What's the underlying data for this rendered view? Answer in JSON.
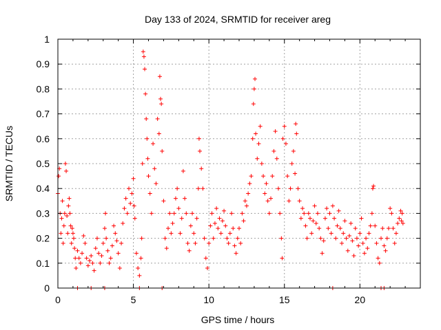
{
  "chart_data": {
    "type": "scatter",
    "title": "Day 133 of 2024, SRMTID for receiver areg",
    "xlabel": "GPS time / hours",
    "ylabel": "SRMTID / TECUs",
    "xlim": [
      0,
      24
    ],
    "ylim": [
      0,
      1
    ],
    "xticks": [
      0,
      5,
      10,
      15,
      20
    ],
    "xtick_labels": [
      "0",
      "5",
      "10",
      "15",
      "20"
    ],
    "yticks": [
      0,
      0.1,
      0.2,
      0.3,
      0.4,
      0.5,
      0.6,
      0.7,
      0.8,
      0.9,
      1
    ],
    "ytick_labels": [
      "0",
      "0.1",
      "0.2",
      "0.3",
      "0.4",
      "0.5",
      "0.6",
      "0.7",
      "0.8",
      "0.9",
      "1"
    ],
    "grid": true,
    "marker": "+",
    "series": [
      {
        "name": "SRMTID",
        "color": "#ff0000",
        "points": [
          [
            0.0,
            0.38
          ],
          [
            0.05,
            0.45
          ],
          [
            0.1,
            0.48
          ],
          [
            0.15,
            0.3
          ],
          [
            0.2,
            0.22
          ],
          [
            0.25,
            0.28
          ],
          [
            0.3,
            0.35
          ],
          [
            0.35,
            0.18
          ],
          [
            0.4,
            0.25
          ],
          [
            0.45,
            0.3
          ],
          [
            0.5,
            0.5
          ],
          [
            0.55,
            0.47
          ],
          [
            0.6,
            0.29
          ],
          [
            0.65,
            0.22
          ],
          [
            0.7,
            0.33
          ],
          [
            0.75,
            0.36
          ],
          [
            0.8,
            0.3
          ],
          [
            0.85,
            0.25
          ],
          [
            0.9,
            0.18
          ],
          [
            0.95,
            0.24
          ],
          [
            1.0,
            0.22
          ],
          [
            1.05,
            0.2
          ],
          [
            1.1,
            0.16
          ],
          [
            1.15,
            0.12
          ],
          [
            1.2,
            0.08
          ],
          [
            1.3,
            0.15
          ],
          [
            1.4,
            0.12
          ],
          [
            1.5,
            0.1
          ],
          [
            1.6,
            0.14
          ],
          [
            1.7,
            0.21
          ],
          [
            1.8,
            0.18
          ],
          [
            1.9,
            0.12
          ],
          [
            2.0,
            0.09
          ],
          [
            2.1,
            0.11
          ],
          [
            2.2,
            0.13
          ],
          [
            2.3,
            0.1
          ],
          [
            2.4,
            0.07
          ],
          [
            2.5,
            0.16
          ],
          [
            2.6,
            0.2
          ],
          [
            2.7,
            0.14
          ],
          [
            2.8,
            0.1
          ],
          [
            2.9,
            0.13
          ],
          [
            3.0,
            0.18
          ],
          [
            3.1,
            0.24
          ],
          [
            3.15,
            0.3
          ],
          [
            3.2,
            0.2
          ],
          [
            3.3,
            0.15
          ],
          [
            3.4,
            0.1
          ],
          [
            3.5,
            0.12
          ],
          [
            3.6,
            0.17
          ],
          [
            3.7,
            0.25
          ],
          [
            3.8,
            0.22
          ],
          [
            3.9,
            0.19
          ],
          [
            4.0,
            0.14
          ],
          [
            4.1,
            0.08
          ],
          [
            4.2,
            0.18
          ],
          [
            4.3,
            0.26
          ],
          [
            4.4,
            0.32
          ],
          [
            4.5,
            0.36
          ],
          [
            4.6,
            0.3
          ],
          [
            4.7,
            0.4
          ],
          [
            4.8,
            0.34
          ],
          [
            4.9,
            0.38
          ],
          [
            5.0,
            0.44
          ],
          [
            5.05,
            0.33
          ],
          [
            5.1,
            0.28
          ],
          [
            5.2,
            0.14
          ],
          [
            5.3,
            0.08
          ],
          [
            5.4,
            0.05
          ],
          [
            5.5,
            0.12
          ],
          [
            5.55,
            0.2
          ],
          [
            5.6,
            0.5
          ],
          [
            5.65,
            0.95
          ],
          [
            5.7,
            0.93
          ],
          [
            5.75,
            0.88
          ],
          [
            5.8,
            0.78
          ],
          [
            5.85,
            0.68
          ],
          [
            5.9,
            0.6
          ],
          [
            5.95,
            0.52
          ],
          [
            6.0,
            0.45
          ],
          [
            6.1,
            0.38
          ],
          [
            6.2,
            0.3
          ],
          [
            6.3,
            0.58
          ],
          [
            6.4,
            0.48
          ],
          [
            6.5,
            0.42
          ],
          [
            6.6,
            0.68
          ],
          [
            6.7,
            0.62
          ],
          [
            6.75,
            0.85
          ],
          [
            6.8,
            0.76
          ],
          [
            6.85,
            0.74
          ],
          [
            6.9,
            0.55
          ],
          [
            7.0,
            0.35
          ],
          [
            7.1,
            0.2
          ],
          [
            7.2,
            0.16
          ],
          [
            7.3,
            0.24
          ],
          [
            7.4,
            0.3
          ],
          [
            7.5,
            0.22
          ],
          [
            7.6,
            0.26
          ],
          [
            7.7,
            0.3
          ],
          [
            7.8,
            0.36
          ],
          [
            7.9,
            0.4
          ],
          [
            8.0,
            0.32
          ],
          [
            8.1,
            0.22
          ],
          [
            8.2,
            0.28
          ],
          [
            8.3,
            0.47
          ],
          [
            8.4,
            0.36
          ],
          [
            8.5,
            0.3
          ],
          [
            8.6,
            0.18
          ],
          [
            8.7,
            0.15
          ],
          [
            8.8,
            0.25
          ],
          [
            8.9,
            0.3
          ],
          [
            9.0,
            0.22
          ],
          [
            9.1,
            0.18
          ],
          [
            9.2,
            0.28
          ],
          [
            9.3,
            0.4
          ],
          [
            9.35,
            0.6
          ],
          [
            9.4,
            0.55
          ],
          [
            9.5,
            0.48
          ],
          [
            9.6,
            0.4
          ],
          [
            9.7,
            0.2
          ],
          [
            9.8,
            0.12
          ],
          [
            9.9,
            0.08
          ],
          [
            10.0,
            0.18
          ],
          [
            10.1,
            0.25
          ],
          [
            10.2,
            0.3
          ],
          [
            10.3,
            0.2
          ],
          [
            10.4,
            0.26
          ],
          [
            10.5,
            0.32
          ],
          [
            10.6,
            0.24
          ],
          [
            10.7,
            0.28
          ],
          [
            10.8,
            0.22
          ],
          [
            10.9,
            0.27
          ],
          [
            11.0,
            0.31
          ],
          [
            11.1,
            0.25
          ],
          [
            11.2,
            0.2
          ],
          [
            11.3,
            0.18
          ],
          [
            11.4,
            0.22
          ],
          [
            11.5,
            0.3
          ],
          [
            11.6,
            0.24
          ],
          [
            11.7,
            0.17
          ],
          [
            11.8,
            0.14
          ],
          [
            11.9,
            0.2
          ],
          [
            12.0,
            0.24
          ],
          [
            12.1,
            0.18
          ],
          [
            12.2,
            0.3
          ],
          [
            12.3,
            0.27
          ],
          [
            12.4,
            0.35
          ],
          [
            12.5,
            0.33
          ],
          [
            12.6,
            0.38
          ],
          [
            12.7,
            0.42
          ],
          [
            12.8,
            0.45
          ],
          [
            12.9,
            0.6
          ],
          [
            12.95,
            0.74
          ],
          [
            13.0,
            0.8
          ],
          [
            13.05,
            0.84
          ],
          [
            13.1,
            0.62
          ],
          [
            13.2,
            0.52
          ],
          [
            13.3,
            0.58
          ],
          [
            13.4,
            0.65
          ],
          [
            13.5,
            0.5
          ],
          [
            13.6,
            0.45
          ],
          [
            13.7,
            0.38
          ],
          [
            13.8,
            0.42
          ],
          [
            13.9,
            0.35
          ],
          [
            14.0,
            0.3
          ],
          [
            14.1,
            0.36
          ],
          [
            14.2,
            0.45
          ],
          [
            14.3,
            0.55
          ],
          [
            14.4,
            0.63
          ],
          [
            14.5,
            0.52
          ],
          [
            14.6,
            0.4
          ],
          [
            14.7,
            0.3
          ],
          [
            14.8,
            0.2
          ],
          [
            14.85,
            0.12
          ],
          [
            14.9,
            0.6
          ],
          [
            15.0,
            0.65
          ],
          [
            15.1,
            0.58
          ],
          [
            15.2,
            0.45
          ],
          [
            15.3,
            0.35
          ],
          [
            15.4,
            0.4
          ],
          [
            15.5,
            0.5
          ],
          [
            15.6,
            0.55
          ],
          [
            15.7,
            0.46
          ],
          [
            15.75,
            0.66
          ],
          [
            15.8,
            0.62
          ],
          [
            15.9,
            0.4
          ],
          [
            16.0,
            0.35
          ],
          [
            16.1,
            0.28
          ],
          [
            16.2,
            0.32
          ],
          [
            16.3,
            0.3
          ],
          [
            16.4,
            0.25
          ],
          [
            16.5,
            0.2
          ],
          [
            16.6,
            0.3
          ],
          [
            16.7,
            0.28
          ],
          [
            16.8,
            0.22
          ],
          [
            16.9,
            0.27
          ],
          [
            17.0,
            0.33
          ],
          [
            17.1,
            0.26
          ],
          [
            17.2,
            0.3
          ],
          [
            17.3,
            0.24
          ],
          [
            17.4,
            0.2
          ],
          [
            17.5,
            0.14
          ],
          [
            17.6,
            0.19
          ],
          [
            17.7,
            0.28
          ],
          [
            17.8,
            0.32
          ],
          [
            17.9,
            0.24
          ],
          [
            18.0,
            0.3
          ],
          [
            18.1,
            0.22
          ],
          [
            18.2,
            0.33
          ],
          [
            18.3,
            0.28
          ],
          [
            18.4,
            0.2
          ],
          [
            18.5,
            0.25
          ],
          [
            18.6,
            0.31
          ],
          [
            18.7,
            0.24
          ],
          [
            18.8,
            0.18
          ],
          [
            18.9,
            0.22
          ],
          [
            19.0,
            0.27
          ],
          [
            19.1,
            0.2
          ],
          [
            19.2,
            0.15
          ],
          [
            19.3,
            0.21
          ],
          [
            19.4,
            0.26
          ],
          [
            19.5,
            0.19
          ],
          [
            19.6,
            0.13
          ],
          [
            19.7,
            0.24
          ],
          [
            19.8,
            0.2
          ],
          [
            19.9,
            0.17
          ],
          [
            20.0,
            0.22
          ],
          [
            20.1,
            0.28
          ],
          [
            20.2,
            0.18
          ],
          [
            20.3,
            0.14
          ],
          [
            20.4,
            0.2
          ],
          [
            20.5,
            0.16
          ],
          [
            20.6,
            0.22
          ],
          [
            20.7,
            0.25
          ],
          [
            20.8,
            0.3
          ],
          [
            20.85,
            0.4
          ],
          [
            20.9,
            0.41
          ],
          [
            21.0,
            0.25
          ],
          [
            21.1,
            0.18
          ],
          [
            21.2,
            0.12
          ],
          [
            21.3,
            0.1
          ],
          [
            21.4,
            0.2
          ],
          [
            21.5,
            0.24
          ],
          [
            21.6,
            0.17
          ],
          [
            21.7,
            0.15
          ],
          [
            21.8,
            0.2
          ],
          [
            21.9,
            0.24
          ],
          [
            22.0,
            0.32
          ],
          [
            22.1,
            0.3
          ],
          [
            22.2,
            0.24
          ],
          [
            22.3,
            0.18
          ],
          [
            22.4,
            0.22
          ],
          [
            22.5,
            0.26
          ],
          [
            22.6,
            0.28
          ],
          [
            22.7,
            0.31
          ],
          [
            22.75,
            0.27
          ],
          [
            22.8,
            0.3
          ],
          [
            22.85,
            0.26
          ],
          [
            1.3,
            0.0
          ],
          [
            2.2,
            0.0
          ],
          [
            3.1,
            0.0
          ],
          [
            5.4,
            0.0
          ],
          [
            6.9,
            0.0
          ],
          [
            18.2,
            0.0
          ],
          [
            21.4,
            0.0
          ],
          [
            21.6,
            0.0
          ]
        ]
      }
    ]
  }
}
